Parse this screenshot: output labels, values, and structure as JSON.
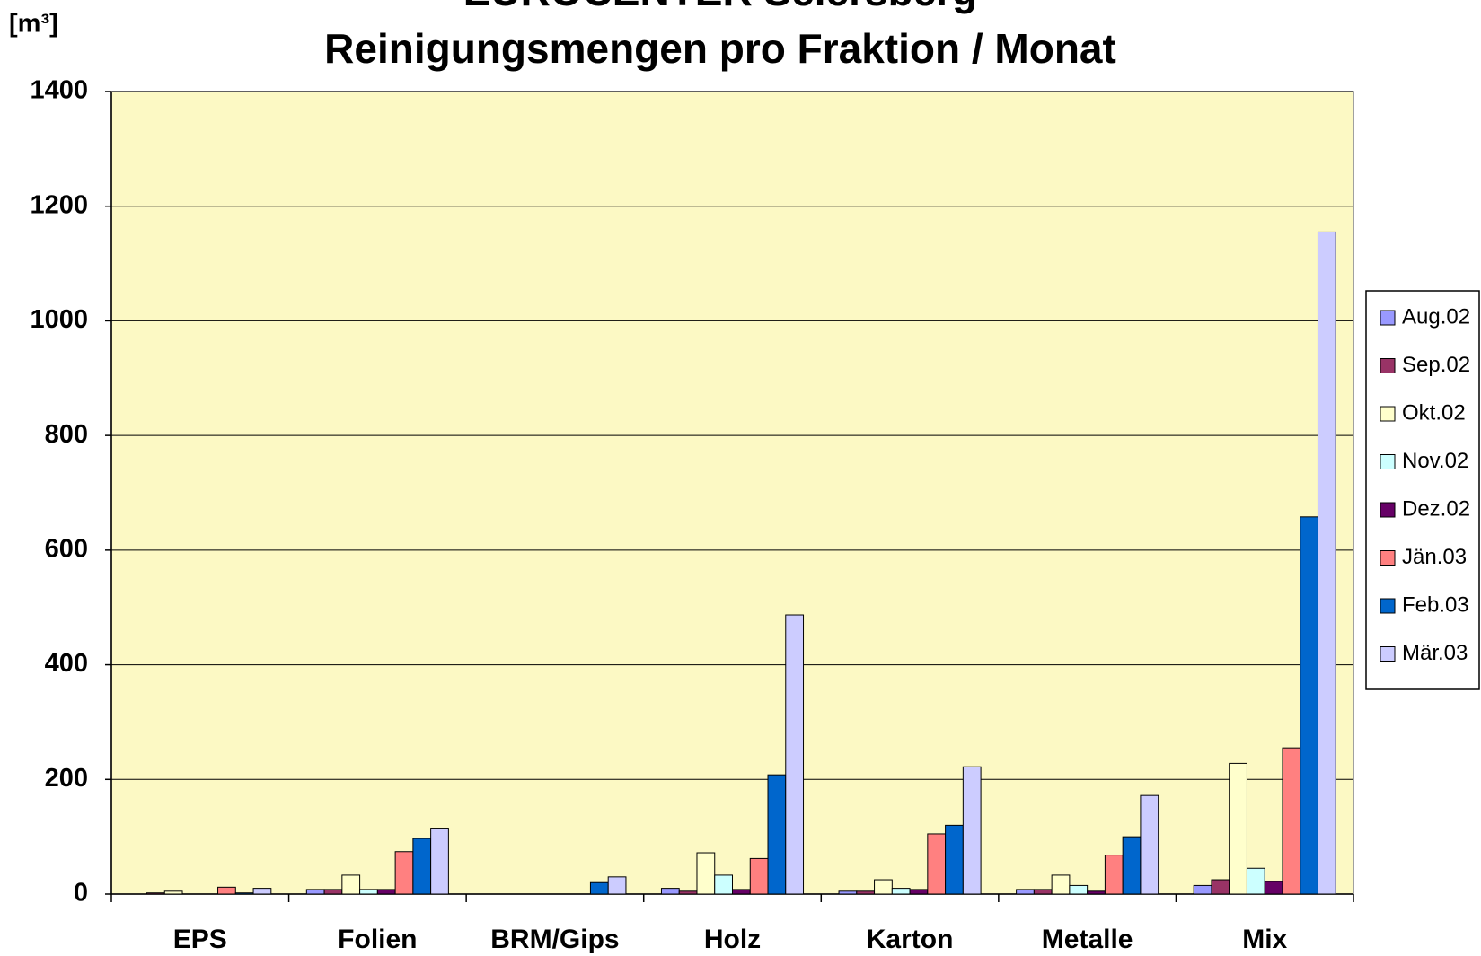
{
  "chart_data": {
    "type": "bar",
    "title": "EUROCENTER Seiersberg",
    "subtitle": "Reinigungsmengen pro Fraktion / Monat",
    "y_label": "[m³]",
    "categories": [
      "EPS",
      "Folien",
      "BRM/Gips",
      "Holz",
      "Karton",
      "Metalle",
      "Mix"
    ],
    "series": [
      {
        "name": "Aug.02",
        "color": "#9999ff",
        "values": [
          0,
          8,
          0,
          10,
          5,
          8,
          15
        ]
      },
      {
        "name": "Sep.02",
        "color": "#993366",
        "values": [
          2,
          8,
          0,
          5,
          5,
          8,
          25
        ]
      },
      {
        "name": "Okt.02",
        "color": "#ffffcc",
        "values": [
          5,
          33,
          0,
          72,
          25,
          33,
          228
        ]
      },
      {
        "name": "Nov.02",
        "color": "#ccffff",
        "values": [
          0,
          8,
          0,
          33,
          10,
          15,
          45
        ]
      },
      {
        "name": "Dez.02",
        "color": "#660066",
        "values": [
          0,
          8,
          0,
          8,
          8,
          5,
          22
        ]
      },
      {
        "name": "Jän.03",
        "color": "#ff8080",
        "values": [
          12,
          74,
          0,
          62,
          105,
          68,
          255
        ]
      },
      {
        "name": "Feb.03",
        "color": "#0066cc",
        "values": [
          2,
          97,
          20,
          208,
          120,
          100,
          658
        ]
      },
      {
        "name": "Mär.03",
        "color": "#ccccff",
        "values": [
          10,
          115,
          30,
          487,
          222,
          172,
          1155
        ]
      }
    ],
    "ylim": [
      0,
      1400
    ],
    "yticks": [
      0,
      200,
      400,
      600,
      800,
      1000,
      1200,
      1400
    ],
    "grid": true,
    "legend": "right",
    "plot_background": "#fcf9c4"
  }
}
